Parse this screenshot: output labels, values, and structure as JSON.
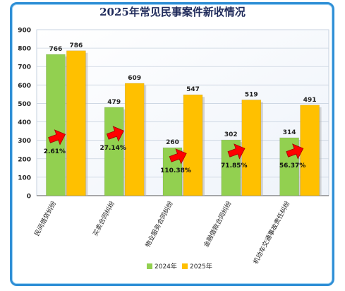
{
  "chart_data": {
    "type": "bar",
    "title": "2025年常见民事案件新收情况",
    "categories": [
      "民间借贷纠纷",
      "买卖合同纠纷",
      "物业服务合同纠纷",
      "金融借款合同纠纷",
      "机动车交通事故责任纠纷"
    ],
    "series": [
      {
        "name": "2024年",
        "color": "#92d050",
        "values": [
          766,
          479,
          260,
          302,
          314
        ]
      },
      {
        "name": "2025年",
        "color": "#ffc000",
        "values": [
          786,
          609,
          547,
          519,
          491
        ]
      }
    ],
    "growth_labels": [
      "2.61%",
      "27.14%",
      "110.38%",
      "71.85%",
      "56.37%"
    ],
    "yticks": [
      "0",
      "100",
      "200",
      "300",
      "400",
      "500",
      "600",
      "700",
      "800",
      "900"
    ],
    "ylim": [
      0,
      900
    ],
    "grid": true,
    "legend_position": "bottom",
    "arrow_color": "#ff0000"
  }
}
